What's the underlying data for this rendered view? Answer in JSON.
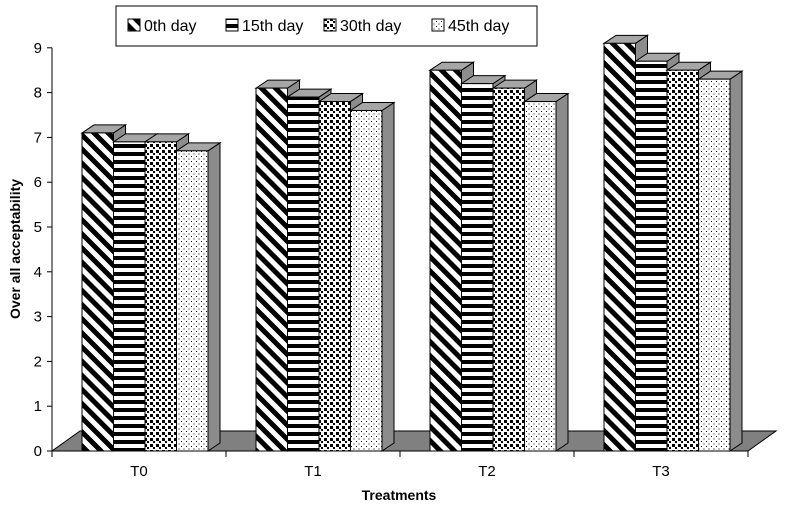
{
  "chart_data": {
    "type": "bar",
    "style": "3d-clustered",
    "xlabel": "Treatments",
    "ylabel": "Over all acceptability",
    "categories": [
      "T0",
      "T1",
      "T2",
      "T3"
    ],
    "ylim": [
      0,
      9
    ],
    "yticks": [
      0,
      1,
      2,
      3,
      4,
      5,
      6,
      7,
      8,
      9
    ],
    "series": [
      {
        "name": "0th day",
        "pattern": "diagonal-stripes",
        "values": [
          7.1,
          8.1,
          8.5,
          9.1
        ]
      },
      {
        "name": "15th day",
        "pattern": "horizontal-stripes",
        "values": [
          6.9,
          7.9,
          8.2,
          8.7
        ]
      },
      {
        "name": "30th day",
        "pattern": "checker-dots",
        "values": [
          6.9,
          7.8,
          8.1,
          8.5
        ]
      },
      {
        "name": "45th day",
        "pattern": "fine-dots",
        "values": [
          6.7,
          7.6,
          7.8,
          8.3
        ]
      }
    ],
    "legend_position": "top",
    "grid": false,
    "colors": {
      "bar_fill": "#ffffff",
      "bar_stroke": "#000000",
      "floor": "#808080",
      "bar_side": "#8c8c8c",
      "bar_top": "#a6a6a6"
    }
  }
}
